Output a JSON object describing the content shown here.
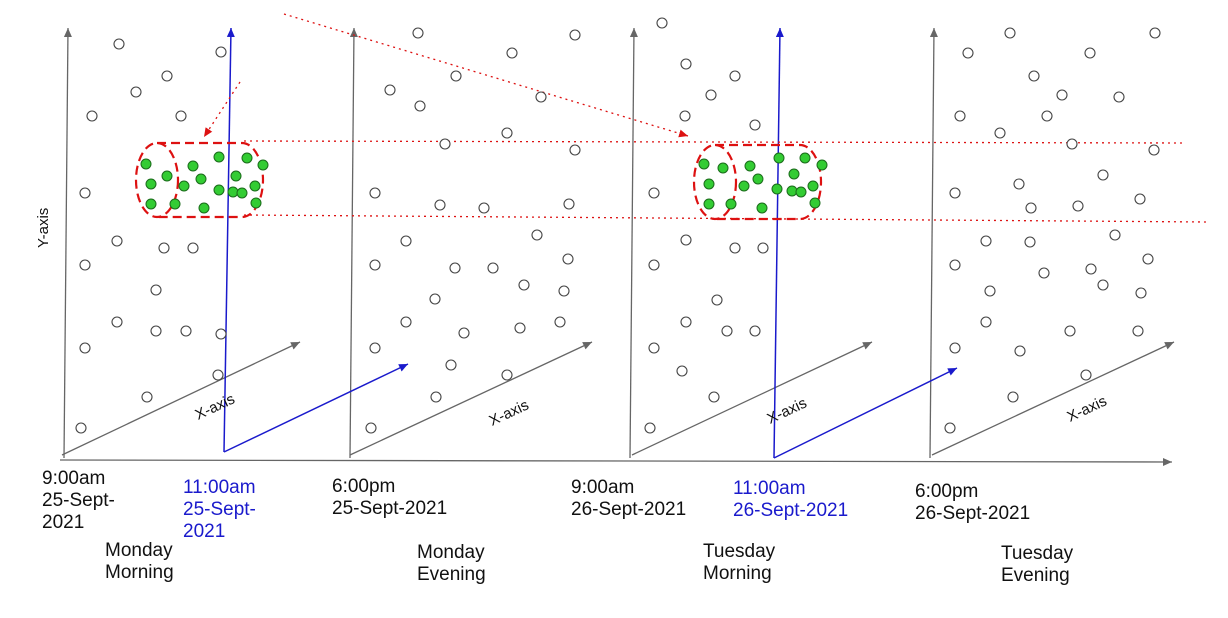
{
  "axes": {
    "y_label": "Y-axis",
    "x_label": "X-axis"
  },
  "colors": {
    "axis": "#666666",
    "current_time_marker": "#1a1acc",
    "highlight_dash": "#dd1111",
    "highlight_point": "#33cc33",
    "background_point": "#ffffff"
  },
  "time_labels": {
    "monday_9am": {
      "time": "9:00am",
      "date_line1": "25-Sept-",
      "date_line2": "2021"
    },
    "monday_11am": {
      "time": "11:00am",
      "date_line1": "25-Sept-",
      "date_line2": "2021"
    },
    "monday_6pm": {
      "time": "6:00pm",
      "date": "25-Sept-2021"
    },
    "tuesday_9am": {
      "time": "9:00am",
      "date": "26-Sept-2021"
    },
    "tuesday_11am": {
      "time": "11:00am",
      "date": "26-Sept-2021"
    },
    "tuesday_6pm": {
      "time": "6:00pm",
      "date": "26-Sept-2021"
    }
  },
  "period_labels": {
    "monday_morning": {
      "day": "Monday",
      "part": "Morning"
    },
    "monday_evening": {
      "day": "Monday",
      "part": "Evening"
    },
    "tuesday_morning": {
      "day": "Tuesday",
      "part": "Morning"
    },
    "tuesday_evening": {
      "day": "Tuesday",
      "part": "Evening"
    }
  }
}
